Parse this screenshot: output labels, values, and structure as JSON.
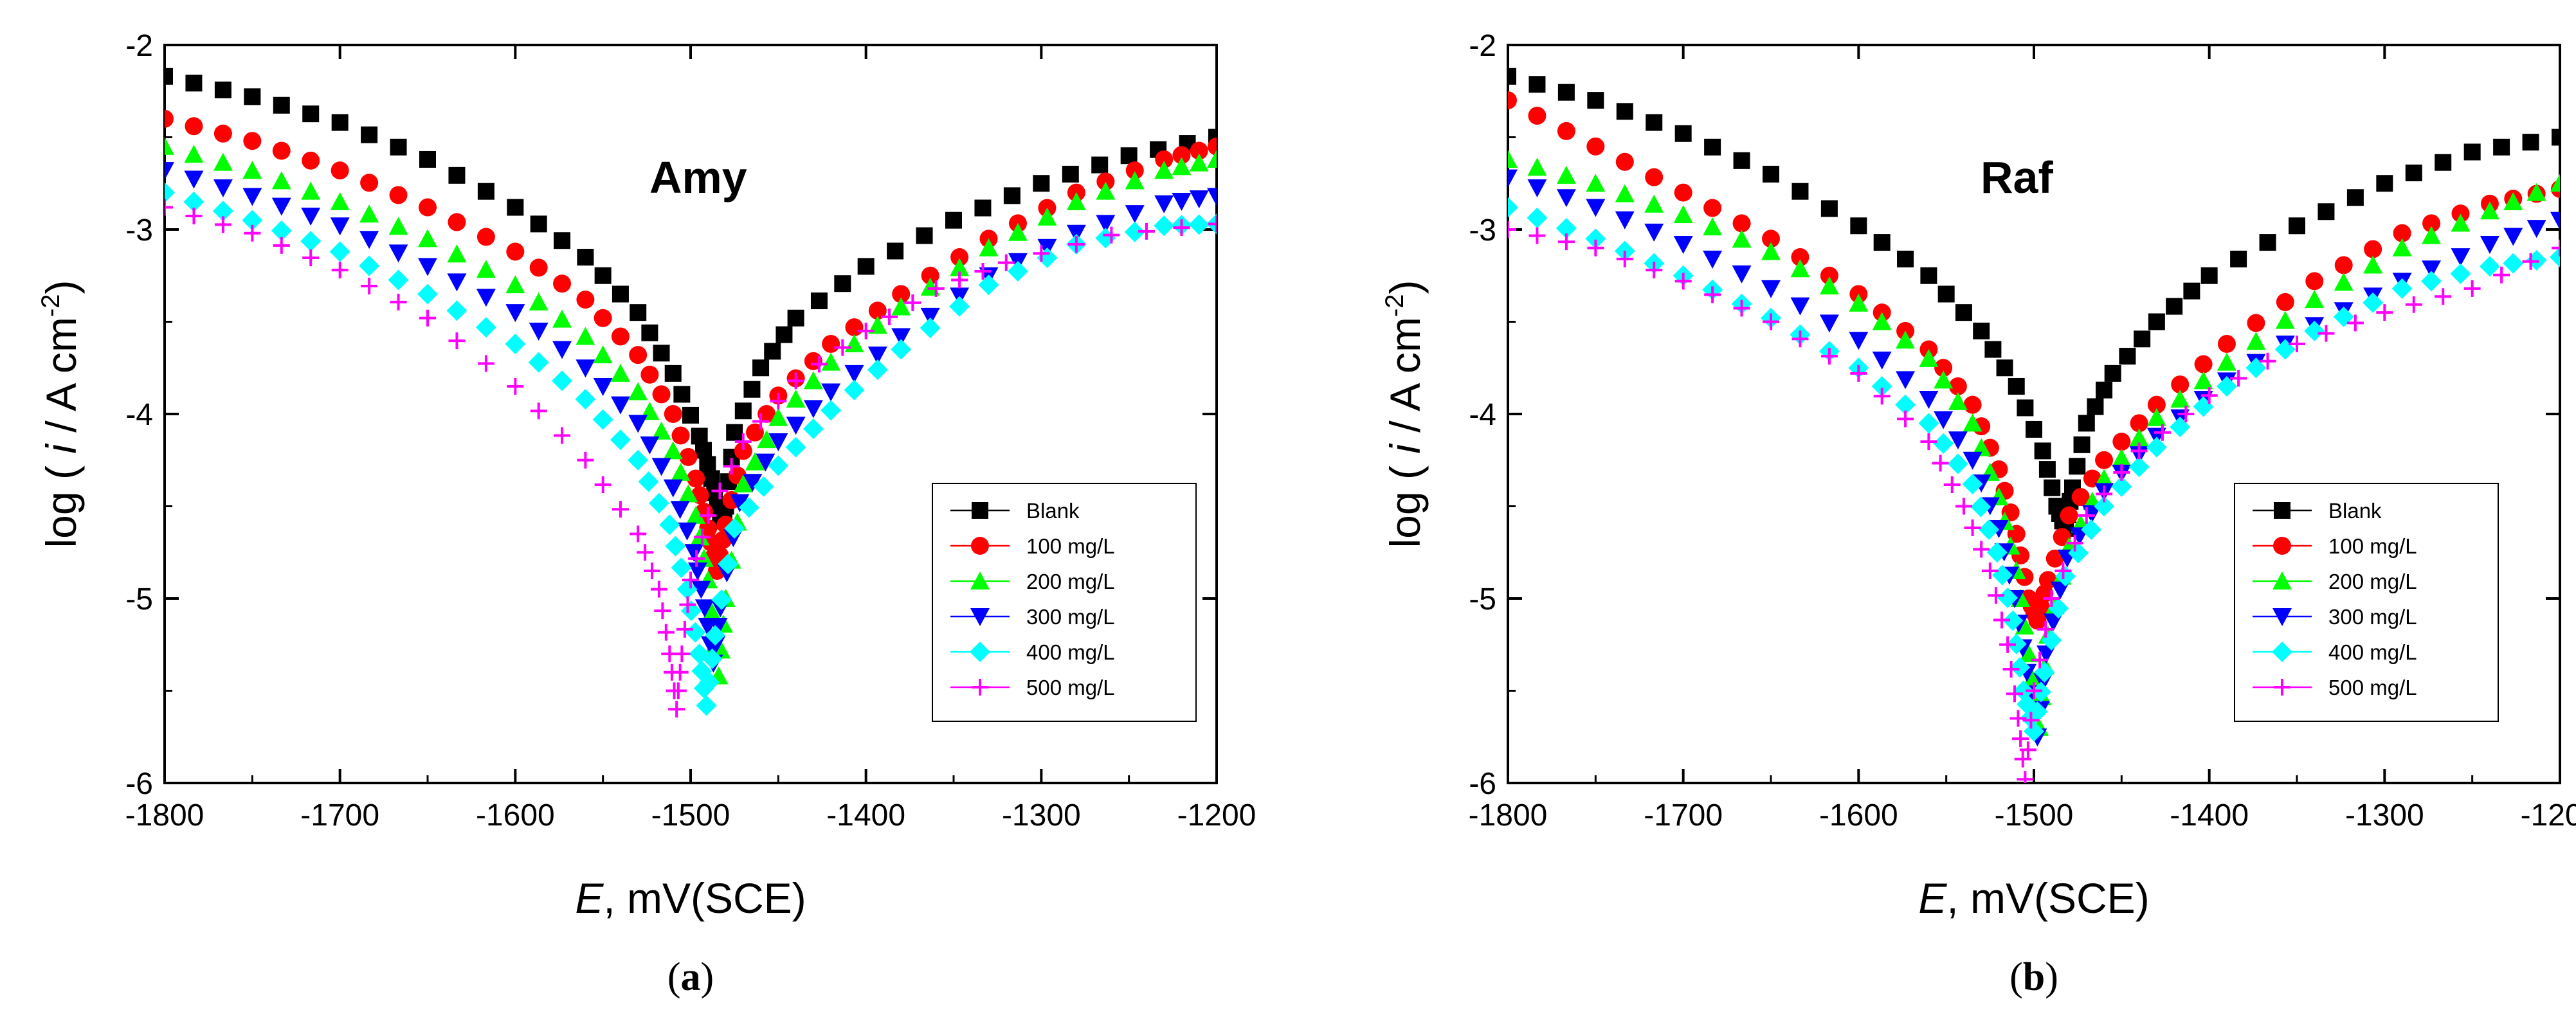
{
  "chart_data": [
    {
      "type": "scatter",
      "title": "Amy",
      "caption": [
        "(",
        "a",
        ")"
      ],
      "xlabel_var": "E",
      "xlabel_rest": ", mV(SCE)",
      "ylabel_pre": "log ( ",
      "ylabel_var": "i",
      "ylabel_post": " / A cm",
      "ylabel_sup": "-2",
      "ylabel_close": ")",
      "xlim": [
        -1800,
        -1200
      ],
      "ylim": [
        -6,
        -2
      ],
      "xticks": [
        -1800,
        -1700,
        -1600,
        -1500,
        -1400,
        -1300,
        -1200
      ],
      "yticks": [
        -6,
        -5,
        -4,
        -3,
        -2
      ],
      "legend_position": "lower-right",
      "series": [
        {
          "name": "Blank",
          "color": "#000000",
          "marker": "square",
          "x": [
            -1800,
            -1750,
            -1700,
            -1650,
            -1600,
            -1560,
            -1530,
            -1510,
            -1495,
            -1488,
            -1483,
            -1480,
            -1475,
            -1460,
            -1440,
            -1400,
            -1350,
            -1300,
            -1250,
            -1200
          ],
          "y": [
            -2.17,
            -2.28,
            -2.42,
            -2.62,
            -2.88,
            -3.15,
            -3.45,
            -3.78,
            -4.12,
            -4.35,
            -4.58,
            -4.5,
            -4.1,
            -3.75,
            -3.48,
            -3.2,
            -2.95,
            -2.75,
            -2.6,
            -2.5
          ]
        },
        {
          "name": "100 mg/L",
          "color": "#ff0000",
          "marker": "circle",
          "x": [
            -1800,
            -1750,
            -1700,
            -1650,
            -1600,
            -1560,
            -1530,
            -1510,
            -1497,
            -1490,
            -1485,
            -1480,
            -1470,
            -1450,
            -1420,
            -1380,
            -1330,
            -1280,
            -1230,
            -1200
          ],
          "y": [
            -2.4,
            -2.52,
            -2.68,
            -2.88,
            -3.12,
            -3.38,
            -3.68,
            -4.0,
            -4.35,
            -4.62,
            -4.85,
            -4.6,
            -4.2,
            -3.9,
            -3.62,
            -3.35,
            -3.05,
            -2.8,
            -2.62,
            -2.55
          ]
        },
        {
          "name": "200 mg/L",
          "color": "#00ff00",
          "marker": "triangle-up",
          "x": [
            -1800,
            -1750,
            -1700,
            -1650,
            -1600,
            -1560,
            -1530,
            -1510,
            -1497,
            -1490,
            -1484,
            -1480,
            -1470,
            -1450,
            -1420,
            -1380,
            -1330,
            -1280,
            -1230,
            -1200
          ],
          "y": [
            -2.55,
            -2.68,
            -2.85,
            -3.05,
            -3.3,
            -3.58,
            -3.88,
            -4.2,
            -4.55,
            -4.9,
            -5.42,
            -5.0,
            -4.38,
            -4.02,
            -3.72,
            -3.42,
            -3.1,
            -2.85,
            -2.68,
            -2.62
          ]
        },
        {
          "name": "300 mg/L",
          "color": "#0000ff",
          "marker": "triangle-down",
          "x": [
            -1800,
            -1750,
            -1700,
            -1650,
            -1600,
            -1560,
            -1530,
            -1510,
            -1498,
            -1492,
            -1487,
            -1483,
            -1472,
            -1450,
            -1420,
            -1380,
            -1330,
            -1280,
            -1230,
            -1200
          ],
          "y": [
            -2.68,
            -2.82,
            -2.98,
            -3.2,
            -3.45,
            -3.75,
            -4.05,
            -4.4,
            -4.75,
            -5.05,
            -5.35,
            -5.05,
            -4.48,
            -4.15,
            -3.88,
            -3.58,
            -3.25,
            -3.02,
            -2.86,
            -2.82
          ]
        },
        {
          "name": "400 mg/L",
          "color": "#00ffff",
          "marker": "diamond",
          "x": [
            -1800,
            -1750,
            -1700,
            -1650,
            -1600,
            -1560,
            -1530,
            -1512,
            -1502,
            -1495,
            -1491,
            -1486,
            -1475,
            -1450,
            -1420,
            -1380,
            -1330,
            -1280,
            -1230,
            -1200
          ],
          "y": [
            -2.8,
            -2.95,
            -3.12,
            -3.35,
            -3.62,
            -3.92,
            -4.25,
            -4.6,
            -4.95,
            -5.3,
            -5.58,
            -5.2,
            -4.62,
            -4.28,
            -3.98,
            -3.65,
            -3.3,
            -3.08,
            -2.98,
            -2.97
          ]
        },
        {
          "name": "500 mg/L",
          "color": "#ff00ff",
          "marker": "plus",
          "x": [
            -1800,
            -1750,
            -1700,
            -1650,
            -1600,
            -1560,
            -1530,
            -1518,
            -1512,
            -1508,
            -1505,
            -1500,
            -1490,
            -1470,
            -1440,
            -1400,
            -1360,
            -1320,
            -1260,
            -1200
          ],
          "y": [
            -2.88,
            -3.02,
            -3.22,
            -3.48,
            -3.85,
            -4.25,
            -4.65,
            -4.95,
            -5.3,
            -5.6,
            -5.3,
            -4.9,
            -4.55,
            -4.15,
            -3.82,
            -3.55,
            -3.32,
            -3.18,
            -3.03,
            -2.97
          ]
        }
      ]
    },
    {
      "type": "scatter",
      "title": "Raf",
      "caption": [
        "(",
        "b",
        ")"
      ],
      "xlabel_var": "E",
      "xlabel_rest": ", mV(SCE)",
      "ylabel_pre": "log ( ",
      "ylabel_var": "i",
      "ylabel_post": " / A cm",
      "ylabel_sup": "-2",
      "ylabel_close": ")",
      "xlim": [
        -1800,
        -1200
      ],
      "ylim": [
        -6,
        -2
      ],
      "xticks": [
        -1800,
        -1700,
        -1600,
        -1500,
        -1400,
        -1300,
        -1200
      ],
      "yticks": [
        -6,
        -5,
        -4,
        -3,
        -2
      ],
      "legend_position": "lower-right",
      "series": [
        {
          "name": "Blank",
          "color": "#000000",
          "marker": "square",
          "x": [
            -1800,
            -1750,
            -1700,
            -1650,
            -1600,
            -1560,
            -1530,
            -1510,
            -1495,
            -1487,
            -1482,
            -1478,
            -1470,
            -1455,
            -1430,
            -1400,
            -1350,
            -1300,
            -1250,
            -1200
          ],
          "y": [
            -2.17,
            -2.3,
            -2.48,
            -2.7,
            -2.98,
            -3.25,
            -3.55,
            -3.85,
            -4.2,
            -4.5,
            -4.62,
            -4.4,
            -4.05,
            -3.78,
            -3.5,
            -3.25,
            -2.98,
            -2.75,
            -2.58,
            -2.5
          ]
        },
        {
          "name": "100 mg/L",
          "color": "#ff0000",
          "marker": "circle",
          "x": [
            -1800,
            -1750,
            -1700,
            -1650,
            -1600,
            -1560,
            -1535,
            -1520,
            -1510,
            -1503,
            -1498,
            -1492,
            -1480,
            -1460,
            -1430,
            -1390,
            -1340,
            -1290,
            -1240,
            -1200
          ],
          "y": [
            -2.3,
            -2.55,
            -2.8,
            -3.05,
            -3.35,
            -3.65,
            -3.95,
            -4.3,
            -4.65,
            -5.0,
            -5.12,
            -4.9,
            -4.55,
            -4.25,
            -3.95,
            -3.62,
            -3.28,
            -3.02,
            -2.86,
            -2.78
          ]
        },
        {
          "name": "200 mg/L",
          "color": "#00ff00",
          "marker": "triangle-up",
          "x": [
            -1800,
            -1750,
            -1700,
            -1650,
            -1600,
            -1560,
            -1535,
            -1520,
            -1510,
            -1503,
            -1497,
            -1492,
            -1480,
            -1460,
            -1430,
            -1390,
            -1340,
            -1290,
            -1240,
            -1200
          ],
          "y": [
            -2.62,
            -2.75,
            -2.92,
            -3.12,
            -3.4,
            -3.7,
            -4.05,
            -4.45,
            -4.85,
            -5.3,
            -5.7,
            -5.2,
            -4.72,
            -4.35,
            -4.02,
            -3.72,
            -3.38,
            -3.1,
            -2.9,
            -2.75
          ]
        },
        {
          "name": "300 mg/L",
          "color": "#0000ff",
          "marker": "triangle-down",
          "x": [
            -1800,
            -1750,
            -1700,
            -1650,
            -1600,
            -1560,
            -1535,
            -1520,
            -1511,
            -1504,
            -1498,
            -1493,
            -1481,
            -1460,
            -1430,
            -1390,
            -1340,
            -1290,
            -1240,
            -1200
          ],
          "y": [
            -2.72,
            -2.88,
            -3.08,
            -3.32,
            -3.6,
            -3.92,
            -4.25,
            -4.62,
            -5.0,
            -5.4,
            -5.75,
            -5.3,
            -4.78,
            -4.42,
            -4.12,
            -3.82,
            -3.52,
            -3.28,
            -3.08,
            -2.95
          ]
        },
        {
          "name": "400 mg/L",
          "color": "#00ffff",
          "marker": "diamond",
          "x": [
            -1800,
            -1750,
            -1700,
            -1650,
            -1600,
            -1560,
            -1535,
            -1521,
            -1512,
            -1506,
            -1500,
            -1494,
            -1482,
            -1460,
            -1430,
            -1390,
            -1340,
            -1290,
            -1240,
            -1200
          ],
          "y": [
            -2.88,
            -3.05,
            -3.25,
            -3.48,
            -3.75,
            -4.05,
            -4.38,
            -4.75,
            -5.12,
            -5.5,
            -5.72,
            -5.4,
            -4.88,
            -4.5,
            -4.18,
            -3.85,
            -3.55,
            -3.32,
            -3.2,
            -3.15
          ]
        },
        {
          "name": "500 mg/L",
          "color": "#ff00ff",
          "marker": "plus",
          "x": [
            -1800,
            -1750,
            -1700,
            -1650,
            -1600,
            -1560,
            -1540,
            -1525,
            -1515,
            -1509,
            -1505,
            -1500,
            -1490,
            -1470,
            -1440,
            -1400,
            -1350,
            -1300,
            -1250,
            -1200
          ],
          "y": [
            -3.0,
            -3.1,
            -3.28,
            -3.5,
            -3.78,
            -4.15,
            -4.5,
            -4.85,
            -5.25,
            -5.65,
            -5.98,
            -5.5,
            -5.0,
            -4.55,
            -4.2,
            -3.9,
            -3.62,
            -3.45,
            -3.32,
            -3.1
          ]
        }
      ]
    }
  ]
}
